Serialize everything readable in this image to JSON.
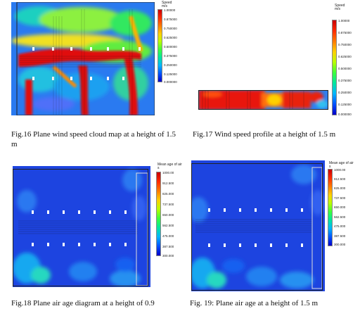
{
  "figures": [
    {
      "id": "fig16",
      "caption": "Fig.16 Plane wind speed cloud map at a height of 1.5 m",
      "colorbar": {
        "title": "Speed\nm/s",
        "ticks": [
          "1.00000",
          "0.875000",
          "0.750000",
          "0.625000",
          "0.500000",
          "0.375000",
          "0.250000",
          "0.125000",
          "0.000000"
        ]
      }
    },
    {
      "id": "fig17",
      "caption": "Fig.17 Wind speed profile at a height of 1.5 m",
      "colorbar": {
        "title": "Speed\nm/s",
        "ticks": [
          "1.00000",
          "0.875000",
          "0.750000",
          "0.625000",
          "0.500000",
          "0.375000",
          "0.250000",
          "0.125000",
          "0.000000"
        ]
      }
    },
    {
      "id": "fig18",
      "caption": "Fig.18 Plane air age diagram at a height of 0.9",
      "colorbar": {
        "title": "Mean age of air\ns",
        "ticks": [
          "1000.00",
          "912.500",
          "825.000",
          "737.500",
          "650.000",
          "562.500",
          "475.000",
          "387.500",
          "300.000"
        ]
      }
    },
    {
      "id": "fig19",
      "caption": "Fig. 19: Plane air age at a height of 1.5 m",
      "colorbar": {
        "title": "Mean age of air\ns",
        "ticks": [
          "1000.00",
          "912.500",
          "825.000",
          "737.500",
          "650.000",
          "562.500",
          "475.000",
          "387.500",
          "300.000"
        ]
      }
    }
  ],
  "colors": {
    "high": "#d40000",
    "mid": "#38e838",
    "low": "#1e46e6",
    "outline": "#222222"
  }
}
